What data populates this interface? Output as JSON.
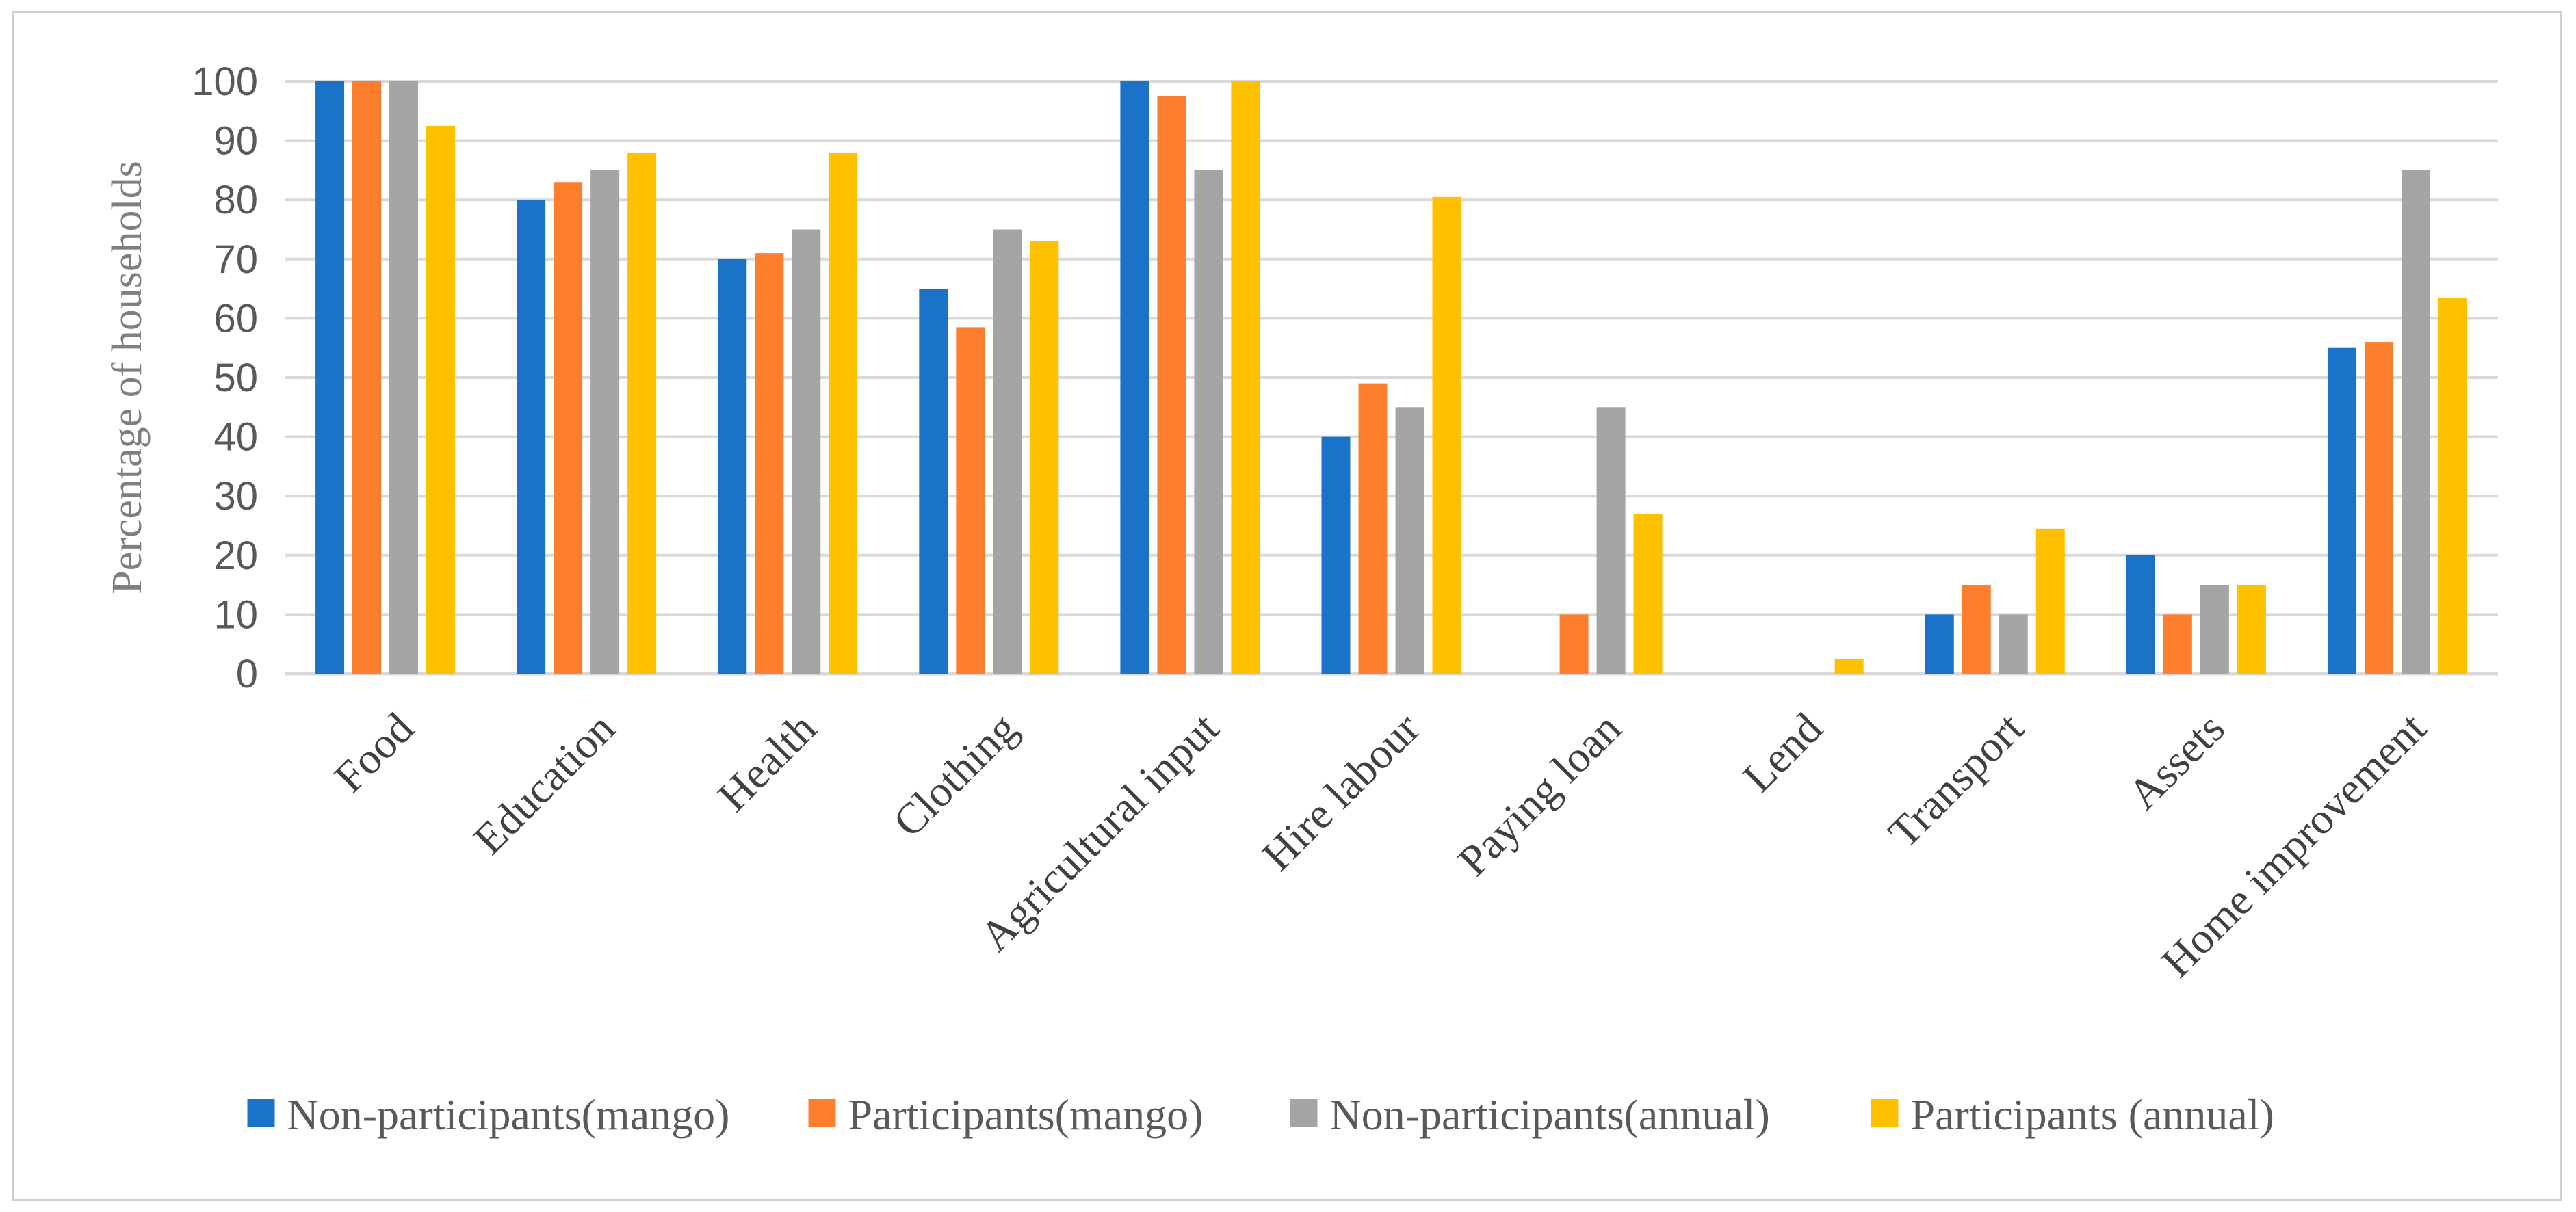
{
  "chart_data": {
    "type": "bar",
    "title": "",
    "xlabel": "",
    "ylabel": "Percentage of households",
    "ylim": [
      0,
      100
    ],
    "yticks": [
      0,
      10,
      20,
      30,
      40,
      50,
      60,
      70,
      80,
      90,
      100
    ],
    "grid": true,
    "legend_position": "bottom",
    "categories": [
      "Food",
      "Education",
      "Health",
      "Clothing",
      "Agricultural input",
      "Hire labour",
      "Paying loan",
      "Lend",
      "Transport",
      "Assets",
      "Home improvement"
    ],
    "series": [
      {
        "name": "Non-participants(mango)",
        "color": "#1a73c9",
        "values": [
          100,
          80,
          70,
          65,
          100,
          40,
          0,
          0,
          10,
          20,
          55
        ]
      },
      {
        "name": "Participants(mango)",
        "color": "#fd7f2e",
        "values": [
          100,
          83,
          71,
          58.5,
          97.5,
          49,
          10,
          0,
          15,
          10,
          56
        ]
      },
      {
        "name": "Non-participants(annual)",
        "color": "#a5a5a5",
        "values": [
          100,
          85,
          75,
          75,
          85,
          45,
          45,
          0,
          10,
          15,
          85
        ]
      },
      {
        "name": "Participants (annual)",
        "color": "#ffc000",
        "values": [
          92.5,
          88,
          88,
          73,
          100,
          80.5,
          27,
          2.5,
          24.5,
          15,
          63.5
        ]
      }
    ]
  }
}
